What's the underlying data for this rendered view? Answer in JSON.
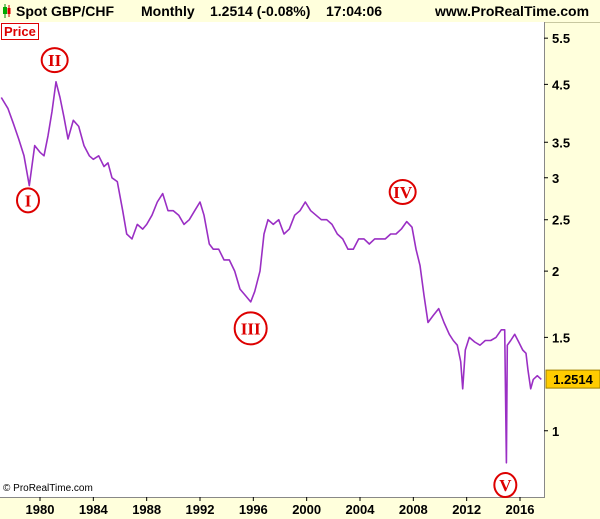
{
  "header": {
    "instrument": "Spot GBP/CHF",
    "interval": "Monthly",
    "quote": "1.2514 (-0.08%)",
    "time": "17:04:06",
    "website": "www.ProRealTime.com"
  },
  "panel_label": "Price",
  "copyright": "© ProRealTime.com",
  "colors": {
    "background": "#ffffdc",
    "plot_background": "#ffffff",
    "series": "#9a2fc4",
    "wave_marker": "#dd0000",
    "last_price_box": "#ffcc00"
  },
  "chart_data": {
    "type": "line",
    "title": "Spot GBP/CHF",
    "ylabel": "",
    "xlabel": "",
    "yscale": "log",
    "ylim": [
      0.75,
      5.9
    ],
    "xlim": [
      1977.0,
      2017.8
    ],
    "grid": false,
    "yticks": [
      5.5,
      4.5,
      3.5,
      3,
      2.5,
      2,
      1.5,
      1
    ],
    "yticks_labels": [
      "5.5",
      "4.5",
      "3.5",
      "3",
      "2.5",
      "2",
      "1.5",
      "1"
    ],
    "xticks": [
      1980,
      1984,
      1988,
      1992,
      1996,
      2000,
      2004,
      2008,
      2012,
      2016
    ],
    "xticks_labels": [
      "1980",
      "1984",
      "1988",
      "1992",
      "1996",
      "2000",
      "2004",
      "2008",
      "2012",
      "2016"
    ],
    "last_price": {
      "value": 1.2514,
      "label": "1.2514"
    },
    "series": [
      {
        "x": [
          1977.1,
          1977.6,
          1978.0,
          1978.4,
          1978.8,
          1979.2,
          1979.6,
          1980.0,
          1980.3,
          1980.6,
          1980.9,
          1981.2,
          1981.5,
          1981.8,
          1982.1,
          1982.5,
          1982.9,
          1983.3,
          1983.7,
          1984.0,
          1984.4,
          1984.8,
          1985.1,
          1985.4,
          1985.8,
          1986.2,
          1986.5,
          1986.9,
          1987.3,
          1987.7,
          1988.0,
          1988.4,
          1988.8,
          1989.2,
          1989.6,
          1990.0,
          1990.4,
          1990.8,
          1991.2,
          1991.6,
          1992.0,
          1992.3,
          1992.7,
          1993.0,
          1993.4,
          1993.8,
          1994.2,
          1994.6,
          1995.0,
          1995.4,
          1995.8,
          1996.1,
          1996.5,
          1996.8,
          1997.1,
          1997.5,
          1997.9,
          1998.3,
          1998.7,
          1999.1,
          1999.5,
          1999.9,
          2000.3,
          2000.7,
          2001.1,
          2001.5,
          2001.9,
          2002.3,
          2002.7,
          2003.1,
          2003.5,
          2003.9,
          2004.3,
          2004.7,
          2005.1,
          2005.5,
          2005.9,
          2006.3,
          2006.7,
          2007.1,
          2007.5,
          2007.9,
          2008.2,
          2008.5,
          2008.8,
          2009.1,
          2009.5,
          2009.9,
          2010.3,
          2010.7,
          2011.0,
          2011.3,
          2011.55,
          2011.7,
          2011.9,
          2012.2,
          2012.6,
          2013.0,
          2013.4,
          2013.8,
          2014.2,
          2014.6,
          2014.85,
          2014.98,
          2015.05,
          2015.3,
          2015.6,
          2015.9,
          2016.2,
          2016.45,
          2016.6,
          2016.8,
          2017.0,
          2017.3,
          2017.6
        ],
        "values": [
          4.25,
          4.05,
          3.8,
          3.55,
          3.3,
          2.9,
          3.45,
          3.35,
          3.3,
          3.6,
          4.0,
          4.55,
          4.25,
          3.9,
          3.55,
          3.85,
          3.75,
          3.45,
          3.3,
          3.25,
          3.3,
          3.15,
          3.2,
          3.0,
          2.95,
          2.6,
          2.35,
          2.3,
          2.45,
          2.4,
          2.45,
          2.55,
          2.7,
          2.8,
          2.6,
          2.6,
          2.55,
          2.45,
          2.5,
          2.6,
          2.7,
          2.55,
          2.25,
          2.2,
          2.2,
          2.1,
          2.1,
          2.0,
          1.85,
          1.8,
          1.75,
          1.83,
          2.0,
          2.35,
          2.5,
          2.45,
          2.5,
          2.35,
          2.4,
          2.55,
          2.6,
          2.7,
          2.6,
          2.55,
          2.5,
          2.5,
          2.45,
          2.35,
          2.3,
          2.2,
          2.2,
          2.3,
          2.3,
          2.25,
          2.3,
          2.3,
          2.3,
          2.35,
          2.35,
          2.4,
          2.48,
          2.42,
          2.2,
          2.05,
          1.8,
          1.6,
          1.65,
          1.7,
          1.6,
          1.52,
          1.48,
          1.45,
          1.35,
          1.2,
          1.42,
          1.5,
          1.47,
          1.45,
          1.48,
          1.48,
          1.5,
          1.55,
          1.55,
          0.87,
          1.45,
          1.48,
          1.52,
          1.47,
          1.42,
          1.4,
          1.3,
          1.2,
          1.25,
          1.27,
          1.25
        ]
      }
    ],
    "annotations": [
      {
        "label": "I",
        "x": 1979.1,
        "y": 2.72
      },
      {
        "label": "II",
        "x": 1981.1,
        "y": 5.0
      },
      {
        "label": "III",
        "x": 1995.8,
        "y": 1.56
      },
      {
        "label": "IV",
        "x": 2007.2,
        "y": 2.82
      },
      {
        "label": "V",
        "x": 2014.9,
        "y": 0.79
      }
    ]
  }
}
